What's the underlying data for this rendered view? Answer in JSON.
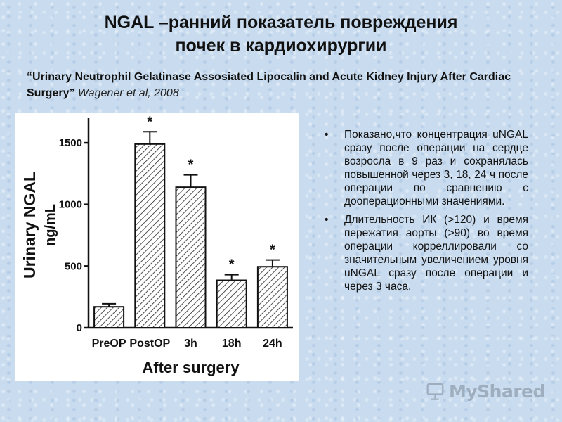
{
  "slide": {
    "title_line1": "NGAL –ранний показатель повреждения",
    "title_line2": "почек в кардиохирургии",
    "citation_quote": "“Urinary Neutrophil Gelatinase Assosiated Lipocalin and Acute Kidney Injury After Cardiac Surgery”",
    "citation_author": "Wagener et al, 2008",
    "bullet_marker": "•",
    "bullets": [
      "Показано,что концентрация uNGAL сразу после операции на сердце возросла в 9 раз и сохранялась повышенной через 3, 18, 24 ч после операции по сравнению с дооперационными значениями.",
      "Длительность ИК (>120) и время пережатия аорты (>90) во время операции корреллировали со значительным увеличением уровня uNGAL сразу после операции и через 3 часа."
    ],
    "watermark": "MyShared",
    "watermark_icon": "presentation-board-icon"
  },
  "chart_data": {
    "type": "bar",
    "categories": [
      "PreOP",
      "PostOP",
      "3h",
      "18h",
      "24h"
    ],
    "values": [
      170,
      1490,
      1140,
      385,
      495
    ],
    "errors": [
      25,
      100,
      100,
      45,
      55
    ],
    "significance": [
      "",
      "*",
      "*",
      "*",
      "*"
    ],
    "ylabel_line1": "Urinary NGAL",
    "ylabel_line2": "ng/mL",
    "xlabel": "After surgery",
    "ylim": [
      0,
      1700
    ],
    "yticks": [
      0,
      500,
      1000,
      1500
    ],
    "bar_fill": "hatched",
    "grid": false
  }
}
